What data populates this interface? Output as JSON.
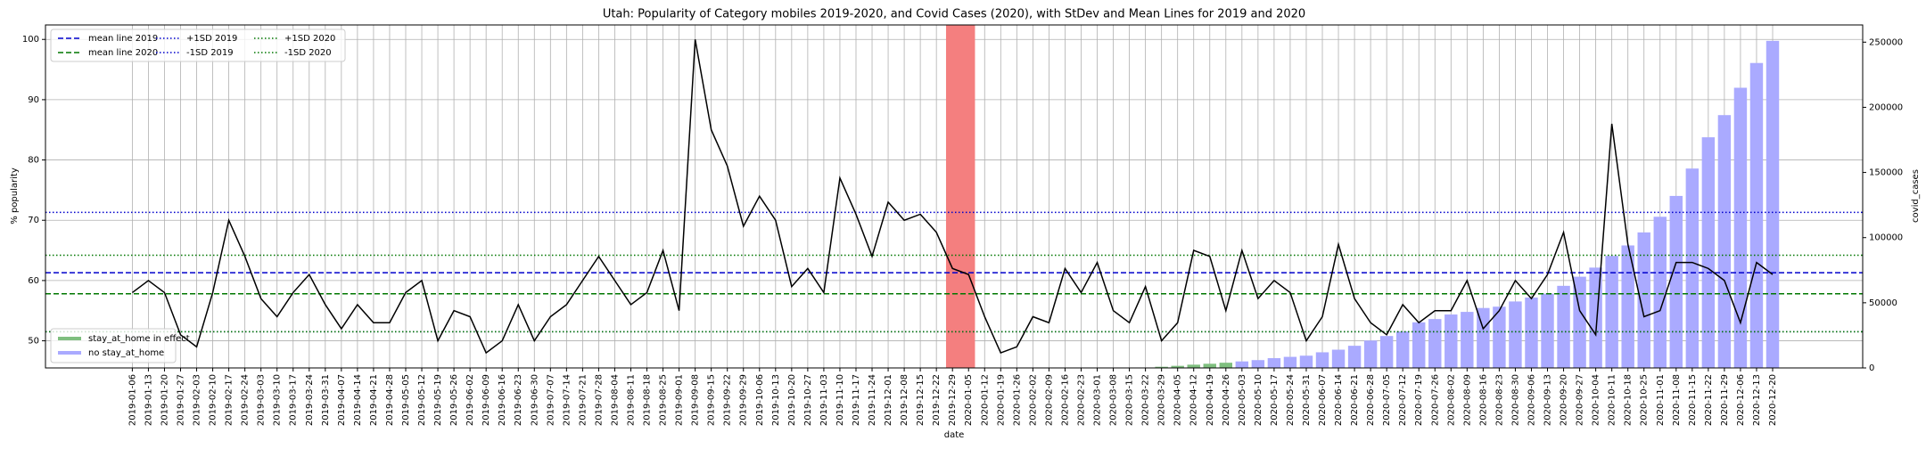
{
  "chart_data": {
    "type": "line",
    "title": "Utah: Popularity of Category mobiles 2019-2020, and Covid Cases (2020), with StDev and Mean Lines for 2019 and 2020",
    "xlabel": "date",
    "ylabel": "% popularity",
    "y2label": "covid_cases",
    "categories": [
      "2019-01-06",
      "2019-01-13",
      "2019-01-20",
      "2019-01-27",
      "2019-02-03",
      "2019-02-10",
      "2019-02-17",
      "2019-02-24",
      "2019-03-03",
      "2019-03-10",
      "2019-03-17",
      "2019-03-24",
      "2019-03-31",
      "2019-04-07",
      "2019-04-14",
      "2019-04-21",
      "2019-04-28",
      "2019-05-05",
      "2019-05-12",
      "2019-05-19",
      "2019-05-26",
      "2019-06-02",
      "2019-06-09",
      "2019-06-16",
      "2019-06-23",
      "2019-06-30",
      "2019-07-07",
      "2019-07-14",
      "2019-07-21",
      "2019-07-28",
      "2019-08-04",
      "2019-08-11",
      "2019-08-18",
      "2019-08-25",
      "2019-09-01",
      "2019-09-08",
      "2019-09-15",
      "2019-09-22",
      "2019-09-29",
      "2019-10-06",
      "2019-10-13",
      "2019-10-20",
      "2019-10-27",
      "2019-11-03",
      "2019-11-10",
      "2019-11-17",
      "2019-11-24",
      "2019-12-01",
      "2019-12-08",
      "2019-12-15",
      "2019-12-22",
      "2019-12-29",
      "2020-01-05",
      "2020-01-12",
      "2020-01-19",
      "2020-01-26",
      "2020-02-02",
      "2020-02-09",
      "2020-02-16",
      "2020-02-23",
      "2020-03-01",
      "2020-03-08",
      "2020-03-15",
      "2020-03-22",
      "2020-03-29",
      "2020-04-05",
      "2020-04-12",
      "2020-04-19",
      "2020-04-26",
      "2020-05-03",
      "2020-05-10",
      "2020-05-17",
      "2020-05-24",
      "2020-05-31",
      "2020-06-07",
      "2020-06-14",
      "2020-06-21",
      "2020-06-28",
      "2020-07-05",
      "2020-07-12",
      "2020-07-19",
      "2020-07-26",
      "2020-08-02",
      "2020-08-09",
      "2020-08-16",
      "2020-08-23",
      "2020-08-30",
      "2020-09-06",
      "2020-09-13",
      "2020-09-20",
      "2020-09-27",
      "2020-10-04",
      "2020-10-11",
      "2020-10-18",
      "2020-10-25",
      "2020-11-01",
      "2020-11-08",
      "2020-11-15",
      "2020-11-22",
      "2020-11-29",
      "2020-12-06",
      "2020-12-13",
      "2020-12-20"
    ],
    "values": [
      58,
      60,
      58,
      51,
      49,
      58,
      70,
      64,
      57,
      54,
      58,
      61,
      56,
      52,
      56,
      53,
      53,
      58,
      60,
      50,
      55,
      54,
      48,
      50,
      56,
      50,
      54,
      56,
      60,
      64,
      60,
      56,
      58,
      65,
      55,
      100,
      85,
      79,
      69,
      74,
      70,
      59,
      62,
      58,
      77,
      71,
      64,
      73,
      70,
      71,
      68,
      62,
      61,
      54,
      48,
      49,
      54,
      53,
      62,
      58,
      63,
      55,
      53,
      59,
      50,
      53,
      65,
      64,
      55,
      65,
      57,
      60,
      58,
      50,
      54,
      66,
      57,
      53,
      51,
      56,
      53,
      55,
      55,
      60,
      52,
      55,
      60,
      57,
      61,
      68,
      55,
      51,
      86,
      66,
      54,
      55,
      63,
      63,
      62,
      60,
      53,
      63,
      61
    ],
    "color": "#000000",
    "series": [
      {
        "name": "stay_at_home in effect",
        "color": "#7fbf7f",
        "axis": "y2",
        "values": [
          null,
          null,
          null,
          null,
          null,
          null,
          null,
          null,
          null,
          null,
          null,
          null,
          null,
          null,
          null,
          null,
          null,
          null,
          null,
          null,
          null,
          null,
          null,
          null,
          null,
          null,
          null,
          null,
          null,
          null,
          null,
          null,
          null,
          null,
          null,
          null,
          null,
          null,
          null,
          null,
          null,
          null,
          null,
          null,
          null,
          null,
          null,
          null,
          null,
          null,
          null,
          null,
          null,
          null,
          null,
          null,
          null,
          null,
          null,
          null,
          null,
          null,
          null,
          null,
          900,
          1600,
          2500,
          3200,
          4000,
          null,
          null,
          null,
          null,
          null,
          null,
          null,
          null,
          null,
          null,
          null,
          null,
          null,
          null,
          null,
          null,
          null,
          null,
          null,
          null,
          null,
          null,
          null,
          null,
          null,
          null,
          null,
          null,
          null,
          null,
          null,
          null,
          null,
          null
        ]
      },
      {
        "name": "no stay_at_home",
        "color": "#aaaaff",
        "axis": "y2",
        "values": [
          null,
          null,
          null,
          null,
          null,
          null,
          null,
          null,
          null,
          null,
          null,
          null,
          null,
          null,
          null,
          null,
          null,
          null,
          null,
          null,
          null,
          null,
          null,
          null,
          null,
          null,
          null,
          null,
          null,
          null,
          null,
          null,
          null,
          null,
          null,
          null,
          null,
          null,
          null,
          null,
          null,
          null,
          null,
          null,
          null,
          null,
          null,
          null,
          null,
          null,
          null,
          null,
          null,
          null,
          null,
          null,
          null,
          null,
          null,
          null,
          null,
          null,
          null,
          null,
          null,
          null,
          null,
          null,
          null,
          5000,
          6000,
          7500,
          8500,
          9400,
          12000,
          14000,
          17000,
          21000,
          24500,
          28000,
          35000,
          37500,
          41000,
          43000,
          46000,
          47000,
          51000,
          54000,
          57000,
          63000,
          70000,
          77000,
          86000,
          94000,
          104000,
          116000,
          132000,
          153000,
          177000,
          194000,
          215000,
          234000,
          251000
        ]
      }
    ],
    "hlines": [
      {
        "name": "mean line 2019",
        "value": 61.3,
        "color": "#0000cc",
        "style": "dashed"
      },
      {
        "name": "mean line 2020",
        "value": 57.8,
        "color": "#007700",
        "style": "dashed"
      },
      {
        "name": "+1SD 2019",
        "value": 71.3,
        "color": "#0000cc",
        "style": "dotted"
      },
      {
        "name": "-1SD 2019",
        "value": 51.5,
        "color": "#0000cc",
        "style": "dotted"
      },
      {
        "name": "+1SD 2020",
        "value": 64.2,
        "color": "#007700",
        "style": "dotted"
      },
      {
        "name": "-1SD 2020",
        "value": 51.5,
        "color": "#007700",
        "style": "dotted"
      }
    ],
    "span": {
      "x": [
        "2019-12-29",
        "2020-01-05"
      ],
      "color": "#f47f7f"
    },
    "ylim": [
      45.5,
      102.4
    ],
    "yticks": [
      50,
      60,
      70,
      80,
      90,
      100
    ],
    "y2lim": [
      0,
      263200
    ],
    "y2ticks": [
      0,
      50000,
      100000,
      150000,
      200000,
      250000
    ],
    "grid": true
  }
}
